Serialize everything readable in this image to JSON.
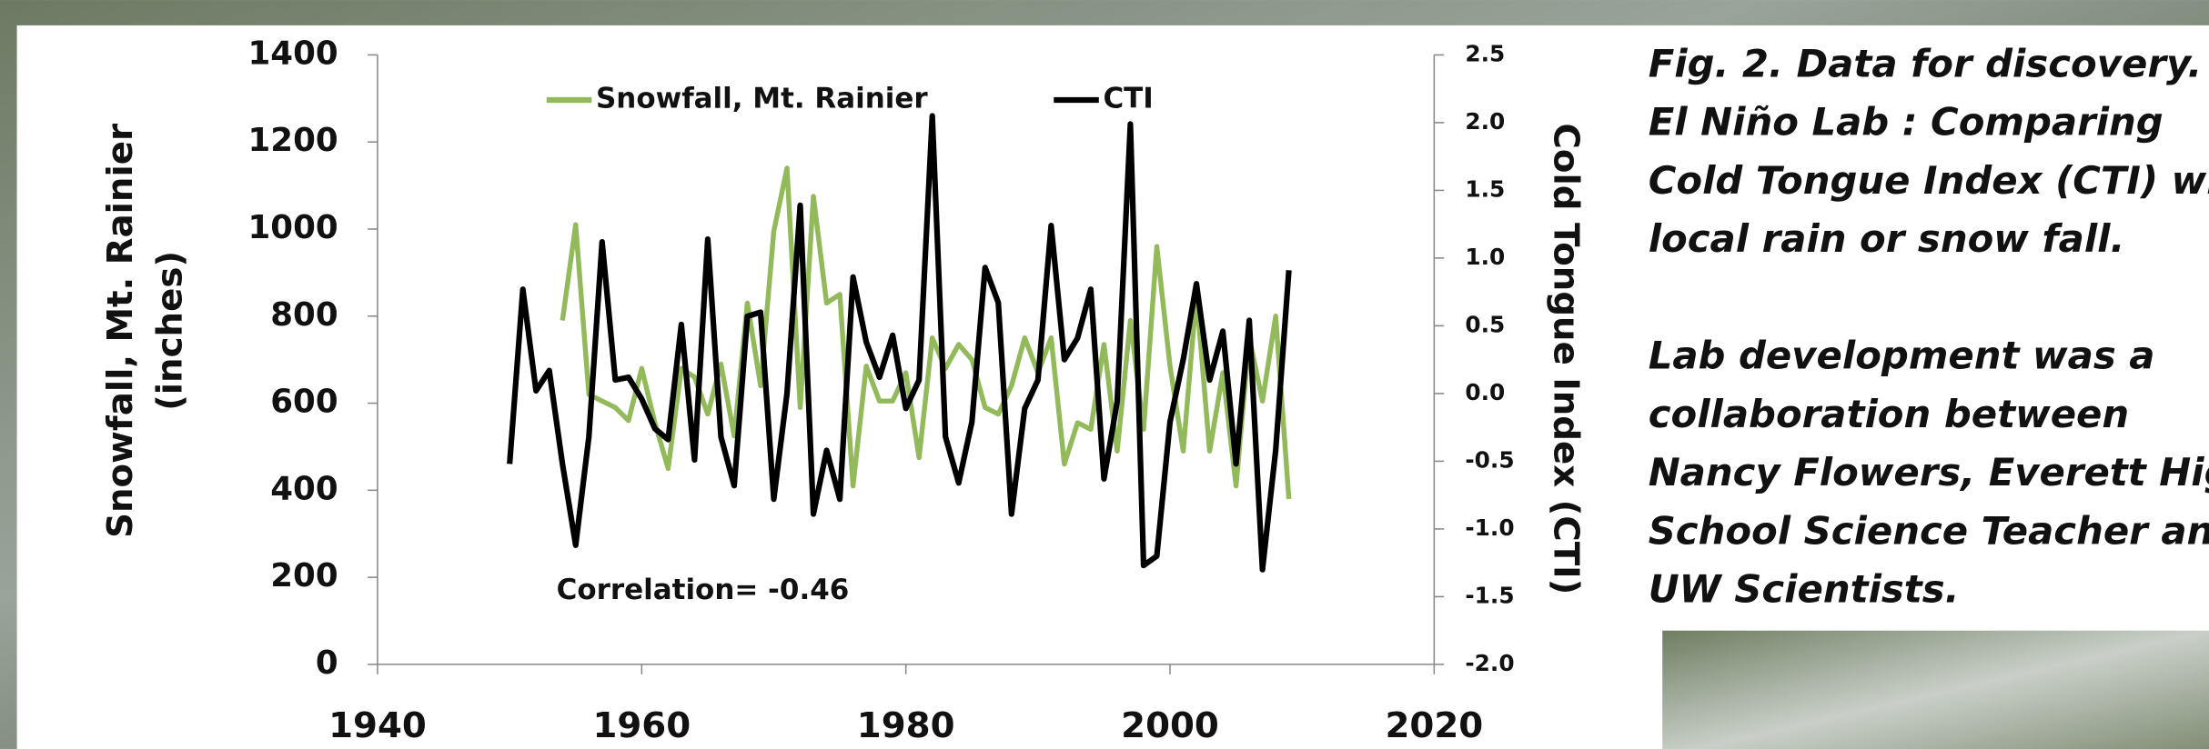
{
  "chart_data": {
    "type": "line",
    "ylabel": [
      "Snowfall, Mt. Rainier",
      "(inches)"
    ],
    "y2label": "Cold Tongue Index (CTI)",
    "annotation": "Correlation= -0.46",
    "xlim": [
      1940,
      2020
    ],
    "xticks": [
      1940,
      1960,
      1980,
      2000,
      2020
    ],
    "ylim": [
      0,
      1400
    ],
    "yticks": [
      0,
      200,
      400,
      600,
      800,
      1000,
      1200,
      1400
    ],
    "y2lim": [
      -2,
      2.5
    ],
    "y2ticks": [
      {
        "value": -2,
        "label": "-2.0"
      },
      -1.5,
      {
        "value": -1,
        "label": "-1.0"
      },
      -0.5,
      {
        "value": 0,
        "label": "0.0"
      },
      0.5,
      {
        "value": 1,
        "label": "1.0"
      },
      1.5,
      {
        "value": 2,
        "label": "2.0"
      },
      2.5
    ],
    "series": [
      {
        "name": "Snowfall, Mt. Rainier",
        "color": "#92b95a",
        "axis": "y",
        "x": [
          1954,
          1955,
          1956,
          1957,
          1958,
          1959,
          1960,
          1961,
          1962,
          1963,
          1964,
          1965,
          1966,
          1967,
          1968,
          1969,
          1970,
          1971,
          1972,
          1973,
          1974,
          1975,
          1976,
          1977,
          1978,
          1979,
          1980,
          1981,
          1982,
          1983,
          1984,
          1985,
          1986,
          1987,
          1988,
          1989,
          1990,
          1991,
          1992,
          1993,
          1994,
          1995,
          1996,
          1997,
          1998,
          1999,
          2000,
          2001,
          2002,
          2003,
          2004,
          2005,
          2006,
          2007,
          2008,
          2009
        ],
        "values": [
          790,
          1010,
          620,
          605,
          590,
          560,
          680,
          555,
          450,
          680,
          660,
          575,
          690,
          525,
          830,
          640,
          995,
          1140,
          590,
          1075,
          830,
          850,
          410,
          685,
          605,
          605,
          670,
          475,
          750,
          680,
          735,
          700,
          590,
          575,
          640,
          750,
          670,
          750,
          460,
          555,
          540,
          735,
          490,
          790,
          540,
          960,
          685,
          490,
          850,
          490,
          670,
          410,
          750,
          605,
          800,
          380
        ]
      },
      {
        "name": "CTI",
        "color": "#000000",
        "axis": "y2",
        "x": [
          1950,
          1951,
          1952,
          1953,
          1954,
          1955,
          1956,
          1957,
          1958,
          1959,
          1960,
          1961,
          1962,
          1963,
          1964,
          1965,
          1966,
          1967,
          1968,
          1969,
          1970,
          1971,
          1972,
          1973,
          1974,
          1975,
          1976,
          1977,
          1978,
          1979,
          1980,
          1981,
          1982,
          1983,
          1984,
          1985,
          1986,
          1987,
          1988,
          1989,
          1990,
          1991,
          1992,
          1993,
          1994,
          1995,
          1996,
          1997,
          1998,
          1999,
          2000,
          2001,
          2002,
          2003,
          2004,
          2005,
          2006,
          2007,
          2008,
          2009
        ],
        "values": [
          -0.52,
          0.77,
          0.02,
          0.17,
          -0.52,
          -1.12,
          -0.32,
          1.12,
          0.1,
          0.12,
          -0.04,
          -0.26,
          -0.34,
          0.51,
          -0.49,
          1.14,
          -0.32,
          -0.68,
          0.57,
          0.6,
          -0.78,
          0,
          1.39,
          -0.89,
          -0.42,
          -0.78,
          0.86,
          0.38,
          0.12,
          0.43,
          -0.11,
          0.1,
          2.05,
          -0.32,
          -0.66,
          -0.21,
          0.93,
          0.67,
          -0.89,
          -0.11,
          0.1,
          1.24,
          0.25,
          0.41,
          0.77,
          -0.63,
          -0.06,
          1.99,
          -1.27,
          -1.2,
          -0.21,
          0.25,
          0.81,
          0.1,
          0.46,
          -0.52,
          0.54,
          -1.3,
          -0.42,
          0.91
        ]
      }
    ],
    "caption": [
      [
        "Fig. 2. Data for discovery.",
        "El Niño Lab :  Comparing",
        "Cold Tongue Index (CTI) with",
        "local rain or snow fall."
      ],
      [
        "Lab development was a",
        "collaboration between",
        "Nancy Flowers, Everett High",
        "School Science Teacher and",
        "UW Scientists."
      ]
    ]
  }
}
